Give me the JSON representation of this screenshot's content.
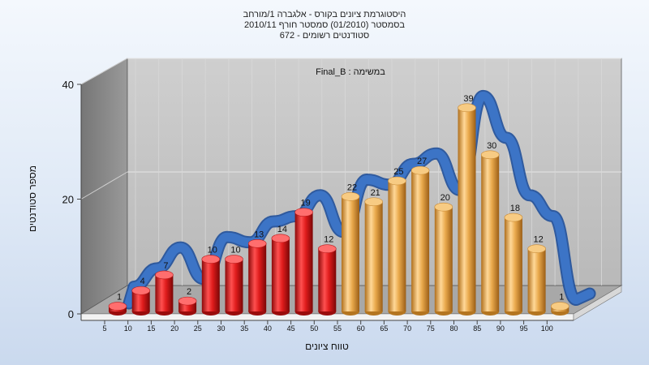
{
  "chart_data": {
    "type": "bar",
    "title_lines": [
      "היסטוגרמת ציונים בקורס - אלגברה 1/מורחב",
      "בסמסטר  (01/2010)  סמסטר חורף  2010/11",
      "סטודנטים רשומים - 672"
    ],
    "annotation": "במשימה : Final_B",
    "xlabel": "טווח ציונים",
    "ylabel": "מספר סטודנטים",
    "categories": [
      "5",
      "10",
      "15",
      "20",
      "25",
      "30",
      "35",
      "40",
      "45",
      "50",
      "55",
      "60",
      "65",
      "70",
      "75",
      "80",
      "85",
      "90",
      "95",
      "100"
    ],
    "values": [
      1,
      4,
      7,
      2,
      10,
      10,
      13,
      14,
      19,
      12,
      22,
      21,
      25,
      27,
      20,
      39,
      30,
      18,
      12,
      1
    ],
    "y_ticks": [
      0,
      20,
      40
    ],
    "ylim": [
      0,
      40
    ],
    "trend_line": [
      3.5,
      7,
      11,
      5,
      13,
      12,
      16,
      17,
      21,
      14,
      24,
      23,
      27,
      29,
      22,
      40,
      32,
      21,
      17,
      1
    ],
    "colors": {
      "fail": "#d92020",
      "pass": "#e8a84a",
      "trend": "#3c74c6",
      "plot_back": "#c2c2c2",
      "side_wall": "#8a8a8a"
    }
  }
}
